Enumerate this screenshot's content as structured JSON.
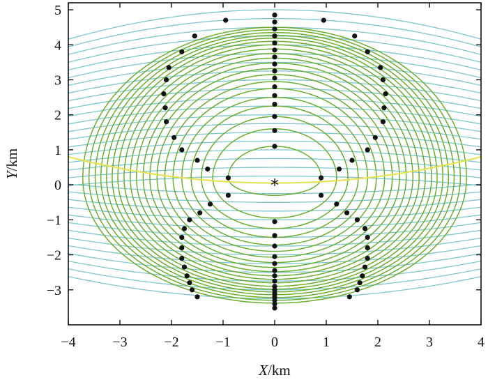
{
  "chart_data": {
    "type": "scatter",
    "xlabel_var": "X",
    "xlabel_unit": "/km",
    "ylabel_var": "Y",
    "ylabel_unit": "/km",
    "xlim": [
      -4,
      4
    ],
    "ylim": [
      -4,
      5.2
    ],
    "x_ticks": [
      -4,
      -3,
      -2,
      -1,
      0,
      1,
      2,
      3,
      4
    ],
    "y_ticks": [
      -3,
      -2,
      -1,
      0,
      1,
      2,
      3,
      4,
      5
    ],
    "grid": false,
    "colors": {
      "ellipse_contours": "#6aae2f",
      "layer_contours": "#7cc6cc",
      "interface": "#e8e24a",
      "points": "#111111",
      "source": "#111111"
    },
    "source_marker": {
      "x": 0,
      "y": 0,
      "symbol": "*"
    },
    "ellipse_contours": {
      "center": [
        0,
        0.2
      ],
      "horizontal_radii": [
        0.9,
        1.2,
        1.42,
        1.62,
        1.8,
        1.97,
        2.13,
        2.28,
        2.42,
        2.55,
        2.68,
        2.8,
        2.92,
        3.04,
        3.15,
        3.26,
        3.37,
        3.48,
        3.6,
        3.72
      ],
      "upper_radii": [
        0.9,
        1.4,
        1.75,
        2.05,
        2.3,
        2.55,
        2.75,
        2.95,
        3.12,
        3.28,
        3.42,
        3.55,
        3.68,
        3.8,
        3.9,
        3.99,
        4.07,
        4.15,
        4.23,
        4.3
      ],
      "lower_radii": [
        0.5,
        1.15,
        1.45,
        1.7,
        1.92,
        2.1,
        2.27,
        2.42,
        2.56,
        2.68,
        2.8,
        2.9,
        3.0,
        3.1,
        3.18,
        3.26,
        3.34,
        3.42,
        3.5,
        3.58
      ]
    },
    "layer_contours": {
      "levels": [
        -3.25,
        -3.0,
        -2.75,
        -2.5,
        -2.25,
        -2.0,
        -1.75,
        -1.5,
        -1.25,
        -1.0,
        -0.75,
        -0.5,
        -0.25,
        0.25,
        0.5,
        0.75,
        1.0,
        1.25,
        1.5,
        1.75,
        2.0,
        2.25,
        2.5,
        2.75,
        3.0,
        3.25,
        3.5,
        3.75,
        4.0,
        4.25,
        4.5,
        4.75,
        5.0
      ],
      "edge_dip_km": 0.6
    },
    "interface_line": {
      "y_center": 0.05,
      "edge_rise_km": 0.75
    },
    "series": [
      {
        "points": [
          [
            0,
            4.85
          ],
          [
            0,
            4.65
          ],
          [
            0,
            4.45
          ],
          [
            0,
            4.25
          ],
          [
            0,
            4.05
          ],
          [
            0,
            3.85
          ],
          [
            0,
            3.65
          ],
          [
            0,
            3.45
          ],
          [
            0,
            3.25
          ],
          [
            0,
            3.05
          ],
          [
            0,
            2.8
          ],
          [
            0,
            2.55
          ],
          [
            0,
            2.3
          ],
          [
            0,
            1.95
          ],
          [
            0,
            1.55
          ],
          [
            0,
            1.1
          ],
          [
            0,
            -1.05
          ],
          [
            0,
            -1.45
          ],
          [
            0,
            -1.75
          ],
          [
            0,
            -2.05
          ],
          [
            0,
            -2.25
          ],
          [
            0,
            -2.45
          ],
          [
            0,
            -2.6
          ],
          [
            0,
            -2.75
          ],
          [
            0,
            -2.9
          ],
          [
            0,
            -3.0
          ],
          [
            0,
            -3.1
          ],
          [
            0,
            -3.2
          ],
          [
            0,
            -3.3
          ],
          [
            0,
            -3.4
          ],
          [
            0,
            -3.52
          ],
          [
            -0.95,
            4.7
          ],
          [
            -1.55,
            4.25
          ],
          [
            -1.8,
            3.8
          ],
          [
            -2.05,
            3.35
          ],
          [
            -2.1,
            3.0
          ],
          [
            -2.15,
            2.6
          ],
          [
            -2.12,
            2.2
          ],
          [
            -2.1,
            1.8
          ],
          [
            -1.95,
            1.35
          ],
          [
            -1.8,
            1.0
          ],
          [
            -1.5,
            0.7
          ],
          [
            -1.3,
            0.45
          ],
          [
            -0.9,
            0.2
          ],
          [
            -0.9,
            -0.3
          ],
          [
            -1.25,
            -0.55
          ],
          [
            -1.45,
            -0.8
          ],
          [
            -1.65,
            -1.0
          ],
          [
            -1.75,
            -1.25
          ],
          [
            -1.8,
            -1.5
          ],
          [
            -1.8,
            -1.8
          ],
          [
            -1.8,
            -2.1
          ],
          [
            -1.75,
            -2.35
          ],
          [
            -1.7,
            -2.6
          ],
          [
            -1.65,
            -2.8
          ],
          [
            -1.6,
            -3.0
          ],
          [
            -1.5,
            -3.2
          ],
          [
            0.95,
            4.7
          ],
          [
            1.55,
            4.25
          ],
          [
            1.8,
            3.8
          ],
          [
            2.05,
            3.35
          ],
          [
            2.1,
            3.0
          ],
          [
            2.15,
            2.6
          ],
          [
            2.12,
            2.2
          ],
          [
            2.1,
            1.8
          ],
          [
            1.95,
            1.35
          ],
          [
            1.8,
            1.0
          ],
          [
            1.5,
            0.7
          ],
          [
            1.25,
            0.45
          ],
          [
            0.9,
            0.2
          ],
          [
            0.9,
            -0.3
          ],
          [
            1.2,
            -0.55
          ],
          [
            1.4,
            -0.8
          ],
          [
            1.6,
            -1.0
          ],
          [
            1.75,
            -1.25
          ],
          [
            1.8,
            -1.5
          ],
          [
            1.8,
            -1.8
          ],
          [
            1.8,
            -2.1
          ],
          [
            1.75,
            -2.35
          ],
          [
            1.7,
            -2.6
          ],
          [
            1.65,
            -2.8
          ],
          [
            1.6,
            -3.0
          ],
          [
            1.45,
            -3.2
          ]
        ]
      }
    ]
  }
}
